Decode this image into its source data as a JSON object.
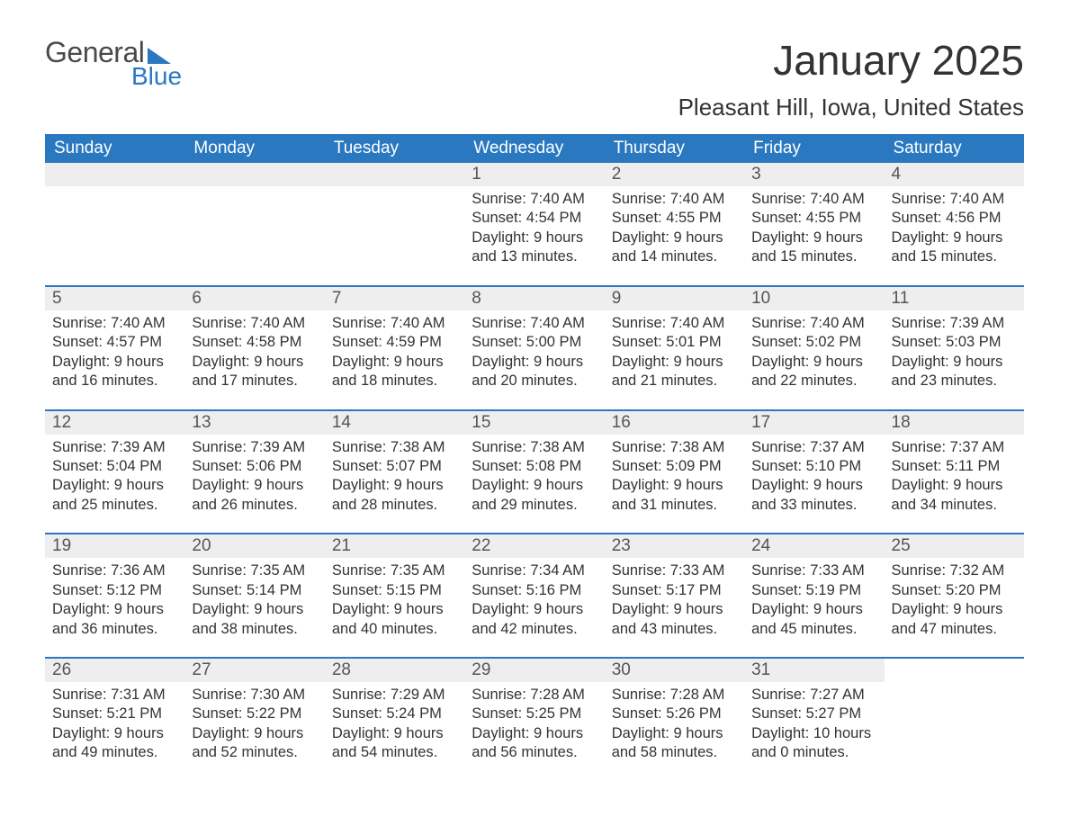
{
  "logo": {
    "general": "General",
    "blue": "Blue"
  },
  "title": "January 2025",
  "location": "Pleasant Hill, Iowa, United States",
  "colors": {
    "accent": "#2a78c0",
    "header_text": "#ffffff",
    "daynum_bg": "#eeeeee",
    "body_text": "#333333",
    "logo_gray": "#4a4a4a"
  },
  "day_names": [
    "Sunday",
    "Monday",
    "Tuesday",
    "Wednesday",
    "Thursday",
    "Friday",
    "Saturday"
  ],
  "weeks": [
    [
      null,
      null,
      null,
      {
        "n": "1",
        "sunrise": "7:40 AM",
        "sunset": "4:54 PM",
        "daylight": "9 hours and 13 minutes."
      },
      {
        "n": "2",
        "sunrise": "7:40 AM",
        "sunset": "4:55 PM",
        "daylight": "9 hours and 14 minutes."
      },
      {
        "n": "3",
        "sunrise": "7:40 AM",
        "sunset": "4:55 PM",
        "daylight": "9 hours and 15 minutes."
      },
      {
        "n": "4",
        "sunrise": "7:40 AM",
        "sunset": "4:56 PM",
        "daylight": "9 hours and 15 minutes."
      }
    ],
    [
      {
        "n": "5",
        "sunrise": "7:40 AM",
        "sunset": "4:57 PM",
        "daylight": "9 hours and 16 minutes."
      },
      {
        "n": "6",
        "sunrise": "7:40 AM",
        "sunset": "4:58 PM",
        "daylight": "9 hours and 17 minutes."
      },
      {
        "n": "7",
        "sunrise": "7:40 AM",
        "sunset": "4:59 PM",
        "daylight": "9 hours and 18 minutes."
      },
      {
        "n": "8",
        "sunrise": "7:40 AM",
        "sunset": "5:00 PM",
        "daylight": "9 hours and 20 minutes."
      },
      {
        "n": "9",
        "sunrise": "7:40 AM",
        "sunset": "5:01 PM",
        "daylight": "9 hours and 21 minutes."
      },
      {
        "n": "10",
        "sunrise": "7:40 AM",
        "sunset": "5:02 PM",
        "daylight": "9 hours and 22 minutes."
      },
      {
        "n": "11",
        "sunrise": "7:39 AM",
        "sunset": "5:03 PM",
        "daylight": "9 hours and 23 minutes."
      }
    ],
    [
      {
        "n": "12",
        "sunrise": "7:39 AM",
        "sunset": "5:04 PM",
        "daylight": "9 hours and 25 minutes."
      },
      {
        "n": "13",
        "sunrise": "7:39 AM",
        "sunset": "5:06 PM",
        "daylight": "9 hours and 26 minutes."
      },
      {
        "n": "14",
        "sunrise": "7:38 AM",
        "sunset": "5:07 PM",
        "daylight": "9 hours and 28 minutes."
      },
      {
        "n": "15",
        "sunrise": "7:38 AM",
        "sunset": "5:08 PM",
        "daylight": "9 hours and 29 minutes."
      },
      {
        "n": "16",
        "sunrise": "7:38 AM",
        "sunset": "5:09 PM",
        "daylight": "9 hours and 31 minutes."
      },
      {
        "n": "17",
        "sunrise": "7:37 AM",
        "sunset": "5:10 PM",
        "daylight": "9 hours and 33 minutes."
      },
      {
        "n": "18",
        "sunrise": "7:37 AM",
        "sunset": "5:11 PM",
        "daylight": "9 hours and 34 minutes."
      }
    ],
    [
      {
        "n": "19",
        "sunrise": "7:36 AM",
        "sunset": "5:12 PM",
        "daylight": "9 hours and 36 minutes."
      },
      {
        "n": "20",
        "sunrise": "7:35 AM",
        "sunset": "5:14 PM",
        "daylight": "9 hours and 38 minutes."
      },
      {
        "n": "21",
        "sunrise": "7:35 AM",
        "sunset": "5:15 PM",
        "daylight": "9 hours and 40 minutes."
      },
      {
        "n": "22",
        "sunrise": "7:34 AM",
        "sunset": "5:16 PM",
        "daylight": "9 hours and 42 minutes."
      },
      {
        "n": "23",
        "sunrise": "7:33 AM",
        "sunset": "5:17 PM",
        "daylight": "9 hours and 43 minutes."
      },
      {
        "n": "24",
        "sunrise": "7:33 AM",
        "sunset": "5:19 PM",
        "daylight": "9 hours and 45 minutes."
      },
      {
        "n": "25",
        "sunrise": "7:32 AM",
        "sunset": "5:20 PM",
        "daylight": "9 hours and 47 minutes."
      }
    ],
    [
      {
        "n": "26",
        "sunrise": "7:31 AM",
        "sunset": "5:21 PM",
        "daylight": "9 hours and 49 minutes."
      },
      {
        "n": "27",
        "sunrise": "7:30 AM",
        "sunset": "5:22 PM",
        "daylight": "9 hours and 52 minutes."
      },
      {
        "n": "28",
        "sunrise": "7:29 AM",
        "sunset": "5:24 PM",
        "daylight": "9 hours and 54 minutes."
      },
      {
        "n": "29",
        "sunrise": "7:28 AM",
        "sunset": "5:25 PM",
        "daylight": "9 hours and 56 minutes."
      },
      {
        "n": "30",
        "sunrise": "7:28 AM",
        "sunset": "5:26 PM",
        "daylight": "9 hours and 58 minutes."
      },
      {
        "n": "31",
        "sunrise": "7:27 AM",
        "sunset": "5:27 PM",
        "daylight": "10 hours and 0 minutes."
      },
      null
    ]
  ],
  "labels": {
    "sunrise_prefix": "Sunrise: ",
    "sunset_prefix": "Sunset: ",
    "daylight_prefix": "Daylight: "
  }
}
